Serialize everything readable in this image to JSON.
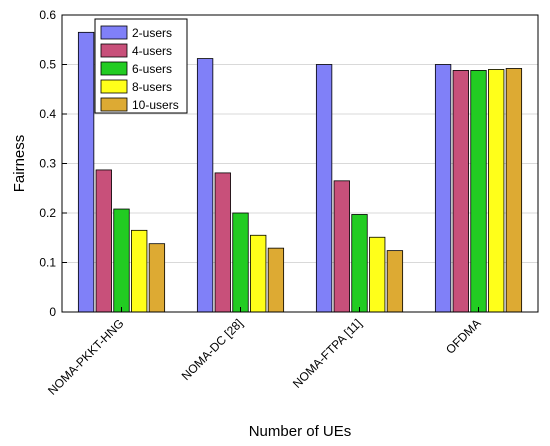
{
  "chart_data": {
    "type": "bar",
    "title": "",
    "xlabel": "Number of UEs",
    "ylabel": "Fairness",
    "ylim": [
      0,
      0.6
    ],
    "yticks": [
      "0",
      "0.1",
      "0.2",
      "0.3",
      "0.4",
      "0.5",
      "0.6"
    ],
    "grid": true,
    "legend_position": "top-left",
    "categories": [
      "NOMA-PKKT-HNG",
      "NOMA-DC [28]",
      "NOMA-FTPA [11]",
      "OFDMA"
    ],
    "series": [
      {
        "name": "2-users",
        "color": "#8080f8",
        "values": [
          0.565,
          0.512,
          0.5,
          0.5
        ]
      },
      {
        "name": "4-users",
        "color": "#c8507a",
        "values": [
          0.287,
          0.281,
          0.265,
          0.488
        ]
      },
      {
        "name": "6-users",
        "color": "#22cc22",
        "values": [
          0.208,
          0.2,
          0.197,
          0.488
        ]
      },
      {
        "name": "8-users",
        "color": "#ffff1a",
        "values": [
          0.165,
          0.155,
          0.151,
          0.49
        ]
      },
      {
        "name": "10-users",
        "color": "#ddaa33",
        "values": [
          0.138,
          0.129,
          0.124,
          0.492
        ]
      }
    ]
  }
}
